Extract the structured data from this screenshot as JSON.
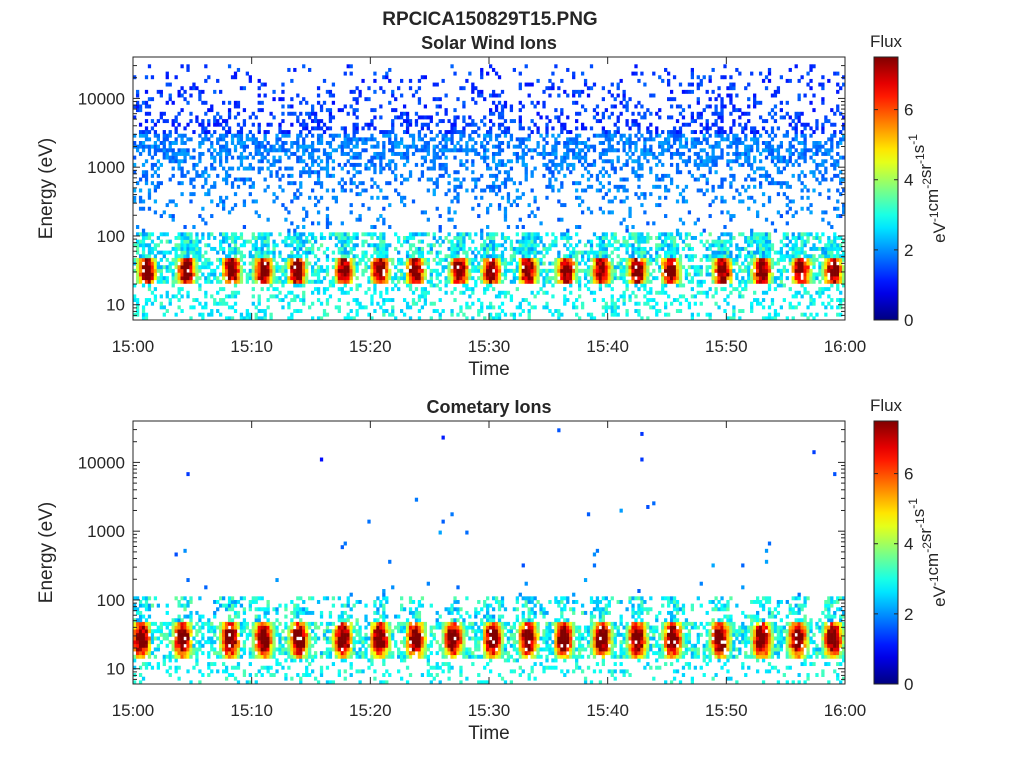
{
  "figure_title": "RPCICA150829T15.PNG",
  "chart_data": [
    {
      "type": "heatmap",
      "title": "Solar Wind Ions",
      "xlabel": "Time",
      "ylabel": "Energy (eV)",
      "xticks": [
        "15:00",
        "15:10",
        "15:20",
        "15:30",
        "15:40",
        "15:50",
        "16:00"
      ],
      "xlim_minutes": [
        0,
        60
      ],
      "yscale": "log",
      "ylim": [
        6,
        40000
      ],
      "yticks": [
        10,
        100,
        1000,
        10000
      ],
      "ytick_labels": [
        "10",
        "100",
        "1000",
        "10000"
      ],
      "colorbar": {
        "label": "Flux",
        "units": "eV-1cm-2sr-1s-1",
        "range": [
          0,
          7.5
        ],
        "ticks": [
          0,
          2,
          4,
          6
        ],
        "colormap": "jet"
      },
      "description_of_data": {
        "core_band_energy_eV": [
          20,
          50
        ],
        "core_band_peak_flux": 6.5,
        "core_band_pulse_times_min": [
          1.2,
          4.5,
          8.3,
          11.0,
          13.8,
          17.8,
          20.8,
          23.8,
          27.5,
          30.2,
          33.3,
          36.5,
          39.5,
          42.5,
          45.3,
          49.7,
          53.0,
          56.3,
          59.0
        ],
        "sparse_background_flux": 1.5,
        "sparse_background_energy_eV": [
          100,
          30000
        ]
      }
    },
    {
      "type": "heatmap",
      "title": "Cometary Ions",
      "xlabel": "Time",
      "ylabel": "Energy (eV)",
      "xticks": [
        "15:00",
        "15:10",
        "15:20",
        "15:30",
        "15:40",
        "15:50",
        "16:00"
      ],
      "xlim_minutes": [
        0,
        60
      ],
      "yscale": "log",
      "ylim": [
        6,
        40000
      ],
      "yticks": [
        10,
        100,
        1000,
        10000
      ],
      "ytick_labels": [
        "10",
        "100",
        "1000",
        "10000"
      ],
      "colorbar": {
        "label": "Flux",
        "units": "eV-1cm-2sr-1s-1",
        "range": [
          0,
          7.5
        ],
        "ticks": [
          0,
          2,
          4,
          6
        ],
        "colormap": "jet"
      },
      "description_of_data": {
        "core_band_energy_eV": [
          15,
          50
        ],
        "core_band_peak_flux": 7.0,
        "core_band_pulse_times_min": [
          0.7,
          4.2,
          8.2,
          11.0,
          14.0,
          17.7,
          20.8,
          23.8,
          27.0,
          30.3,
          33.3,
          36.3,
          39.5,
          42.5,
          45.5,
          49.5,
          53.0,
          56.0,
          59.0
        ],
        "sparse_background_flux": 1.5,
        "sparse_background_energy_eV": [
          100,
          30000
        ]
      }
    }
  ]
}
